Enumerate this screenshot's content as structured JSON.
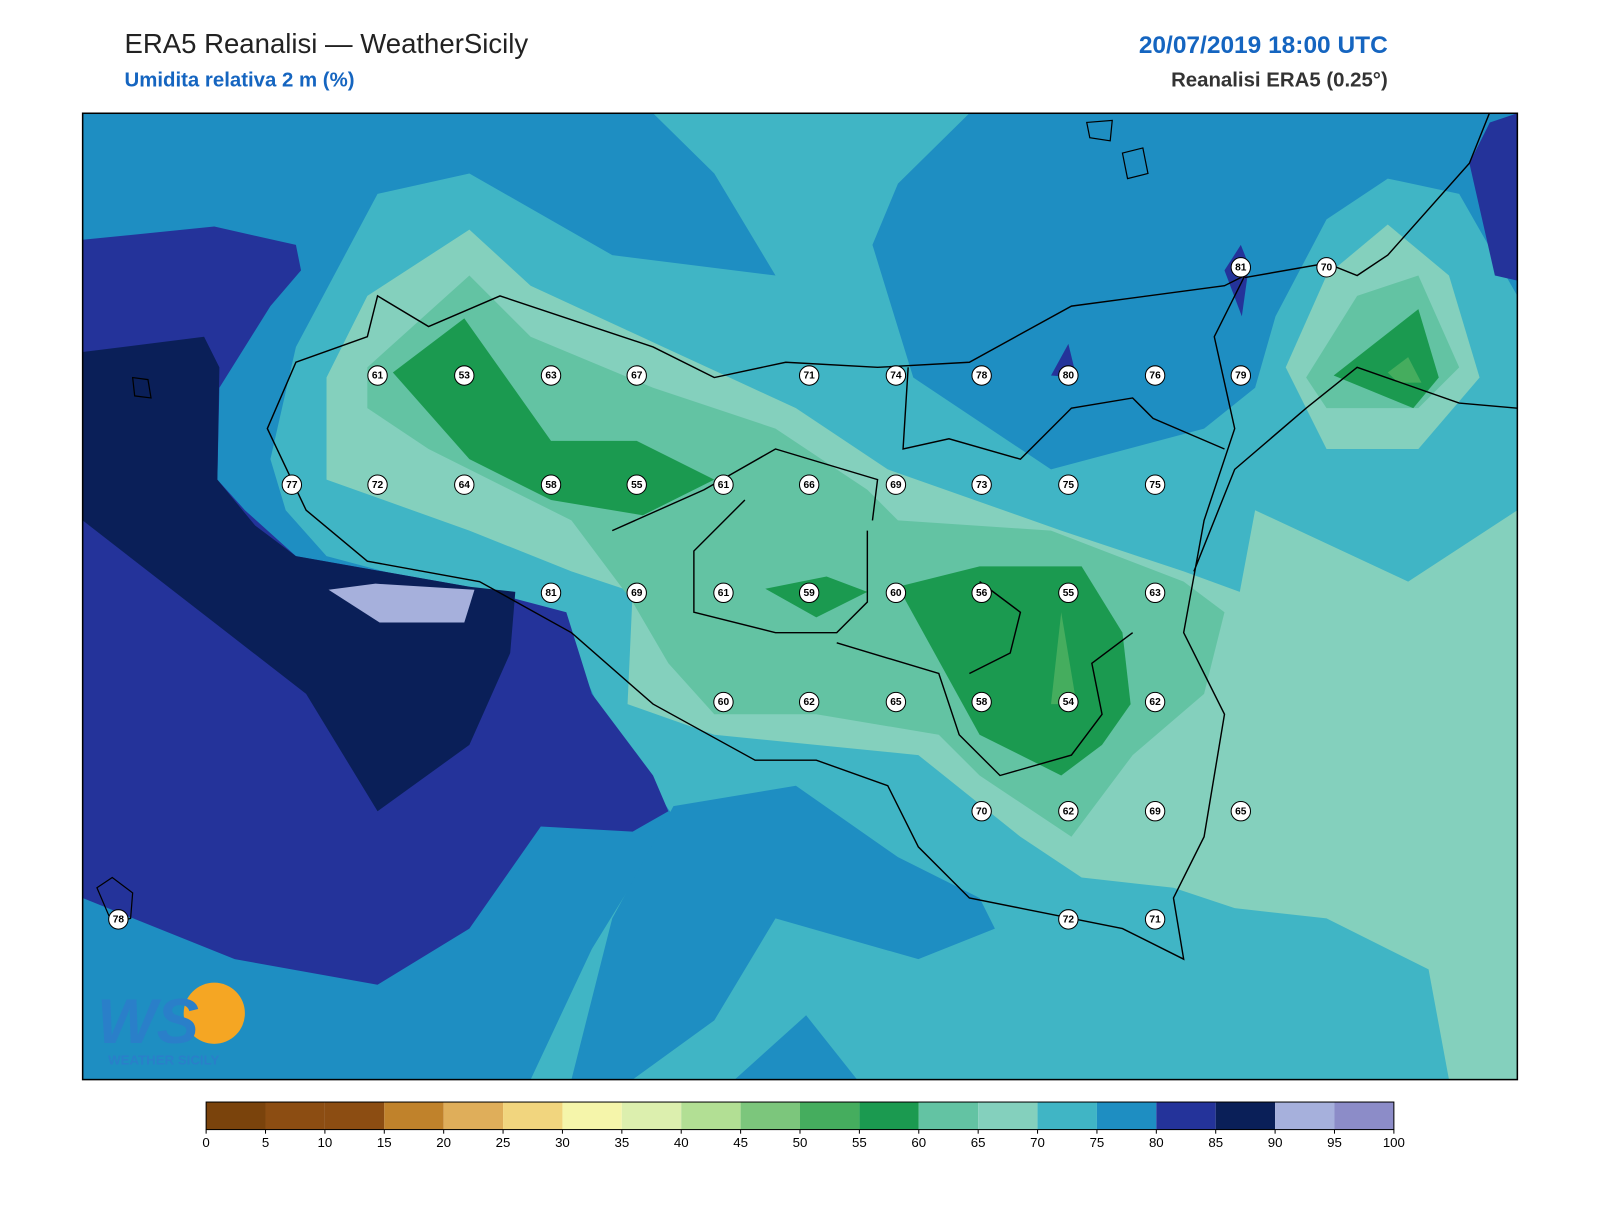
{
  "header": {
    "title": "ERA5 Reanalisi — WeatherSicily",
    "subtitle": "Umidita relativa 2 m (%)",
    "date": "20/07/2019 18:00 UTC",
    "source": "Reanalisi ERA5 (0.25°)"
  },
  "stations": [
    81,
    70,
    61,
    53,
    63,
    67,
    71,
    74,
    78,
    80,
    76,
    79,
    77,
    72,
    64,
    58,
    55,
    61,
    66,
    69,
    73,
    75,
    75,
    81,
    69,
    61,
    59,
    60,
    56,
    55,
    63,
    60,
    62,
    65,
    58,
    54,
    62,
    70,
    62,
    69,
    65,
    78,
    72,
    71
  ],
  "colorbar": {
    "ticks": [
      0,
      5,
      10,
      15,
      20,
      25,
      30,
      35,
      40,
      45,
      50,
      55,
      60,
      65,
      70,
      75,
      80,
      85,
      90,
      95,
      100
    ],
    "colors": [
      "#7a430c",
      "#8c4d12",
      "#8c4d12",
      "#c0822b",
      "#dfae5a",
      "#f1d57e",
      "#f5f5aa",
      "#dcefae",
      "#b2df94",
      "#7cc67c",
      "#45ad5e",
      "#1b9a50",
      "#63c3a3",
      "#84d0bd",
      "#40b5c5",
      "#1e8ec2",
      "#24339a",
      "#0a1f58",
      "#a6b0dc",
      "#8c8cc8"
    ]
  },
  "logo": {
    "mark": "WS",
    "text": "WEATHER SICILY"
  }
}
